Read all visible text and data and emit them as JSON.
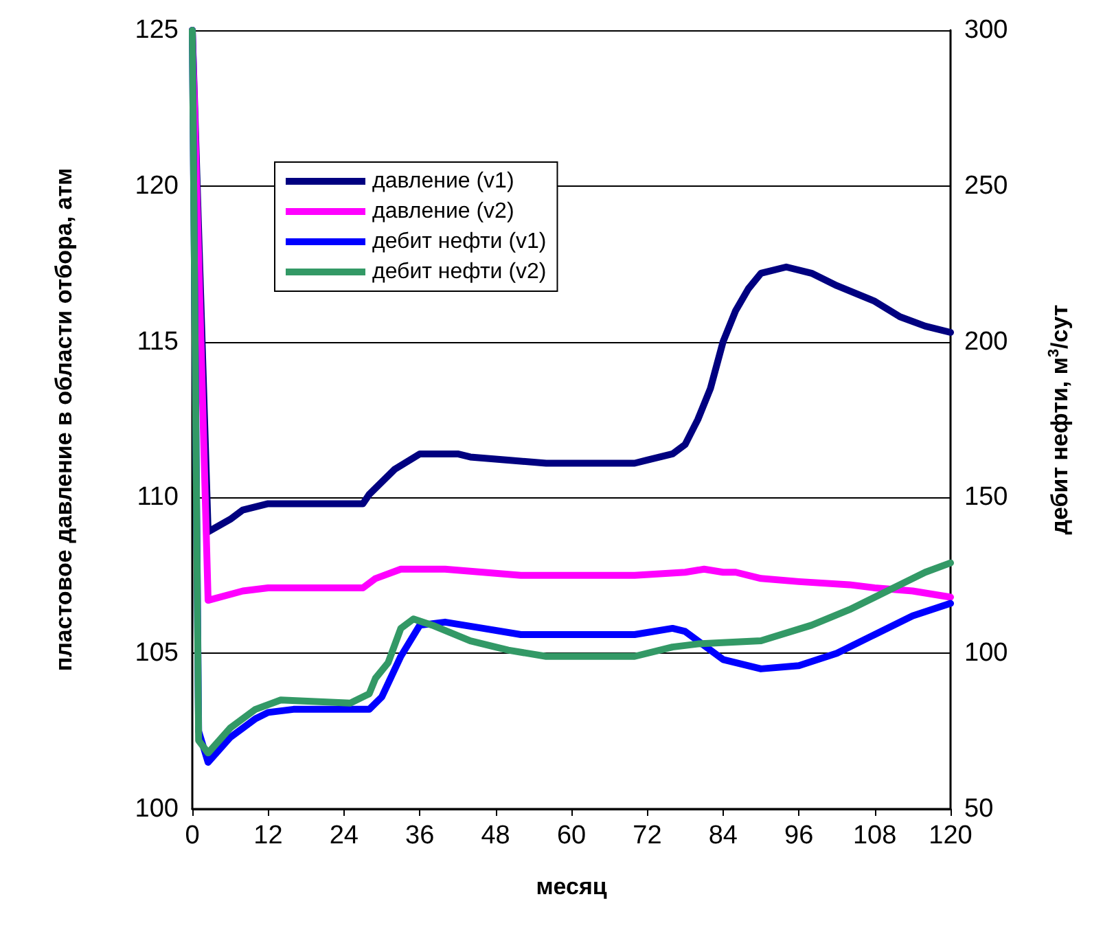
{
  "chart_data": {
    "type": "line",
    "xlabel": "месяц",
    "ylabel": "пластовое давление в области отбора, атм",
    "y2label": "дебит нефти, м$^{3}$/сут",
    "xlim": [
      0,
      120
    ],
    "xticks": [
      0,
      12,
      24,
      36,
      48,
      60,
      72,
      84,
      96,
      108,
      120
    ],
    "ylim": [
      100,
      125
    ],
    "yticks": [
      100,
      105,
      110,
      115,
      120,
      125
    ],
    "y2lim": [
      50,
      300
    ],
    "y2ticks": [
      50,
      100,
      150,
      200,
      250,
      300
    ],
    "grid": "y",
    "legend": "top left",
    "marker": "none",
    "line_style": "solid",
    "series": [
      {
        "name": "давление (v1)",
        "color": "#000080",
        "x": [
          0,
          2.5,
          6,
          8,
          12,
          27,
          28,
          32,
          36,
          42,
          44,
          50,
          56,
          70,
          72,
          76,
          78,
          80,
          82,
          84,
          86,
          88,
          90,
          94,
          98,
          102,
          108,
          112,
          116,
          120
        ],
        "values": [
          125,
          108.9,
          109.3,
          109.6,
          109.8,
          109.8,
          110.1,
          110.9,
          111.4,
          111.4,
          111.3,
          111.2,
          111.1,
          111.1,
          111.2,
          111.4,
          111.7,
          112.5,
          113.5,
          115,
          116,
          116.7,
          117.2,
          117.4,
          117.2,
          116.8,
          116.3,
          115.8,
          115.5,
          115.3
        ]
      },
      {
        "name": "давление (v2)",
        "color": "#ff00ff",
        "x": [
          0,
          2.5,
          8,
          12,
          27,
          29,
          33,
          40,
          46,
          52,
          70,
          78,
          81,
          84,
          86,
          90,
          96,
          104,
          108,
          114,
          120
        ],
        "values": [
          125,
          106.7,
          107,
          107.1,
          107.1,
          107.4,
          107.7,
          107.7,
          107.6,
          107.5,
          107.5,
          107.6,
          107.7,
          107.6,
          107.6,
          107.4,
          107.3,
          107.2,
          107.1,
          107,
          106.8
        ]
      },
      {
        "name": "дебит нефти (v1)",
        "color": "#0000ff",
        "axis": "y2",
        "x": [
          0,
          1,
          2.5,
          6,
          10,
          12,
          16,
          28,
          30,
          33,
          36,
          40,
          46,
          52,
          70,
          76,
          78,
          80,
          84,
          90,
          96,
          102,
          108,
          114,
          120
        ],
        "values": [
          300,
          75,
          65,
          73,
          79,
          81,
          82,
          82,
          86,
          99,
          109,
          110,
          108,
          106,
          106,
          108,
          107,
          104,
          98,
          95,
          96,
          100,
          106,
          112,
          116
        ]
      },
      {
        "name": "дебит нефти (v2)",
        "color": "#339966",
        "axis": "y2",
        "x": [
          0,
          1,
          2.5,
          6,
          10,
          14,
          25,
          28,
          29,
          31,
          33,
          35,
          38,
          44,
          50,
          56,
          70,
          76,
          80,
          90,
          98,
          104,
          110,
          116,
          120
        ],
        "values": [
          300,
          72,
          68,
          76,
          82,
          85,
          84,
          87,
          92,
          97,
          108,
          111,
          109,
          104,
          101,
          99,
          99,
          102,
          103,
          104,
          109,
          114,
          120,
          126,
          129
        ]
      }
    ]
  }
}
